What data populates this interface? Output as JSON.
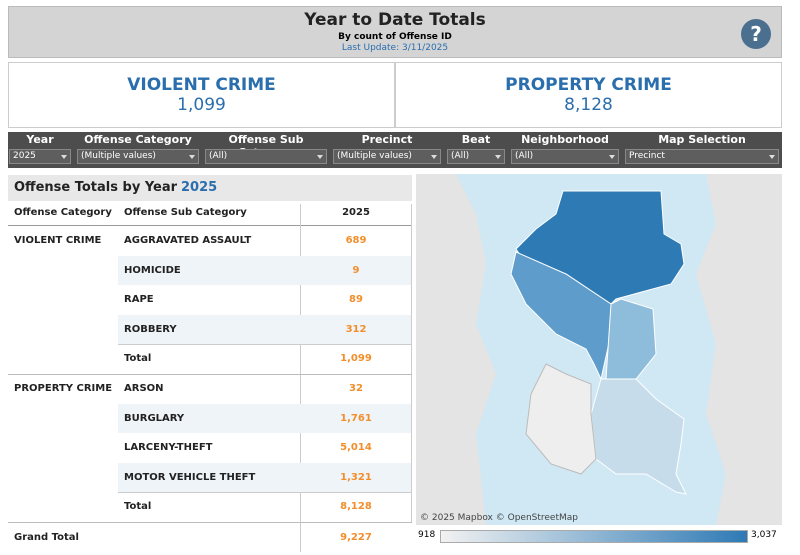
{
  "header": {
    "title": "Year to Date Totals",
    "subtitle": "By count of Offense ID",
    "update": "Last Update: 3/11/2025",
    "help_icon": "?"
  },
  "kpis": [
    {
      "label": "VIOLENT CRIME",
      "value": "1,099"
    },
    {
      "label": "PROPERTY CRIME",
      "value": "8,128"
    }
  ],
  "filters": [
    {
      "label": "Year",
      "value": "2025"
    },
    {
      "label": "Offense Category",
      "value": "(Multiple values)"
    },
    {
      "label": "Offense Sub Category",
      "value": "(All)"
    },
    {
      "label": "Precinct",
      "value": "(Multiple values)"
    },
    {
      "label": "Beat",
      "value": "(All)"
    },
    {
      "label": "Neighborhood",
      "value": "(All)"
    },
    {
      "label": "Map Selection",
      "value": "Precinct"
    }
  ],
  "table": {
    "title": "Offense Totals by Year",
    "title_year": "2025",
    "columns": [
      "Offense Category",
      "Offense Sub Category",
      "2025"
    ],
    "groups": [
      {
        "category": "VIOLENT CRIME",
        "rows": [
          [
            "AGGRAVATED ASSAULT",
            "689"
          ],
          [
            "HOMICIDE",
            "9"
          ],
          [
            "RAPE",
            "89"
          ],
          [
            "ROBBERY",
            "312"
          ],
          [
            "Total",
            "1,099"
          ]
        ]
      },
      {
        "category": "PROPERTY CRIME",
        "rows": [
          [
            "ARSON",
            "32"
          ],
          [
            "BURGLARY",
            "1,761"
          ],
          [
            "LARCENY-THEFT",
            "5,014"
          ],
          [
            "MOTOR VEHICLE THEFT",
            "1,321"
          ],
          [
            "Total",
            "8,128"
          ]
        ]
      }
    ],
    "grand_total": [
      "Grand Total",
      "9,227"
    ]
  },
  "map": {
    "attribution": "© 2025 Mapbox © OpenStreetMap",
    "legend": [
      "918",
      "3,037"
    ]
  }
}
